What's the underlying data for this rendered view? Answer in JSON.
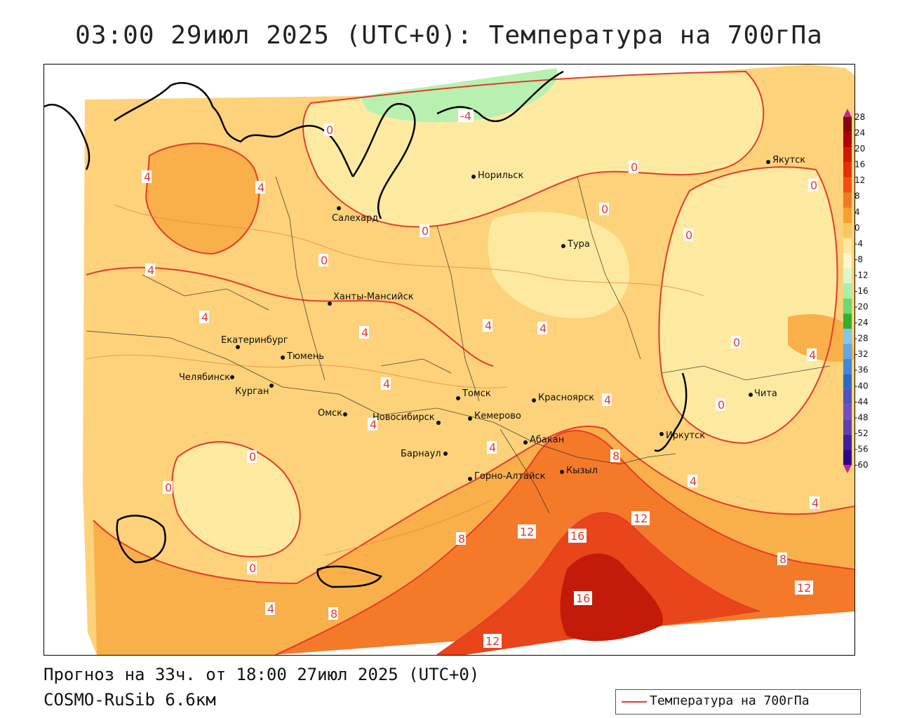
{
  "title": "03:00 29июл 2025 (UTC+0): Температура на 700гПа",
  "footer": {
    "forecast": "Прогноз на 33ч. от 18:00 27июл 2025 (UTC+0)",
    "model": "COSMO-RuSib 6.6км"
  },
  "legend": {
    "label": "Температура на 700гПа",
    "line_color": "#e53b2a"
  },
  "colorbar": {
    "ticks": [
      "28",
      "24",
      "20",
      "16",
      "12",
      "8",
      "4",
      "0",
      "-4",
      "-8",
      "-12",
      "-16",
      "-20",
      "-24",
      "-28",
      "-32",
      "-36",
      "-40",
      "-44",
      "-48",
      "-52",
      "-56",
      "-60"
    ],
    "colors": [
      "#8b0000",
      "#b00000",
      "#d01a00",
      "#e83000",
      "#f05010",
      "#f07a20",
      "#f5a030",
      "#f8c860",
      "#fde8a0",
      "#fff8d0",
      "#d8f8d0",
      "#a8f0a8",
      "#70d870",
      "#30b030",
      "#80c8e8",
      "#60a8e0",
      "#4088d8",
      "#3068c8",
      "#5050c8",
      "#7050c0",
      "#6040b0",
      "#4020a0",
      "#300090"
    ]
  },
  "cities": [
    {
      "name": "Якутск"
    },
    {
      "name": "Норильск"
    },
    {
      "name": "Салехард"
    },
    {
      "name": "Тура"
    },
    {
      "name": "Ханты-Мансийск"
    },
    {
      "name": "Екатеринбург"
    },
    {
      "name": "Тюмень"
    },
    {
      "name": "Челябинск"
    },
    {
      "name": "Курган"
    },
    {
      "name": "Омск"
    },
    {
      "name": "Новосибирск"
    },
    {
      "name": "Томск"
    },
    {
      "name": "Кемерово"
    },
    {
      "name": "Красноярск"
    },
    {
      "name": "Барнаул"
    },
    {
      "name": "Абакан"
    },
    {
      "name": "Горно-Алтайск"
    },
    {
      "name": "Кызыл"
    },
    {
      "name": "Иркутск"
    },
    {
      "name": "Чита"
    }
  ],
  "contour_labels": [
    "-4",
    "0",
    "4",
    "8",
    "12",
    "16"
  ]
}
